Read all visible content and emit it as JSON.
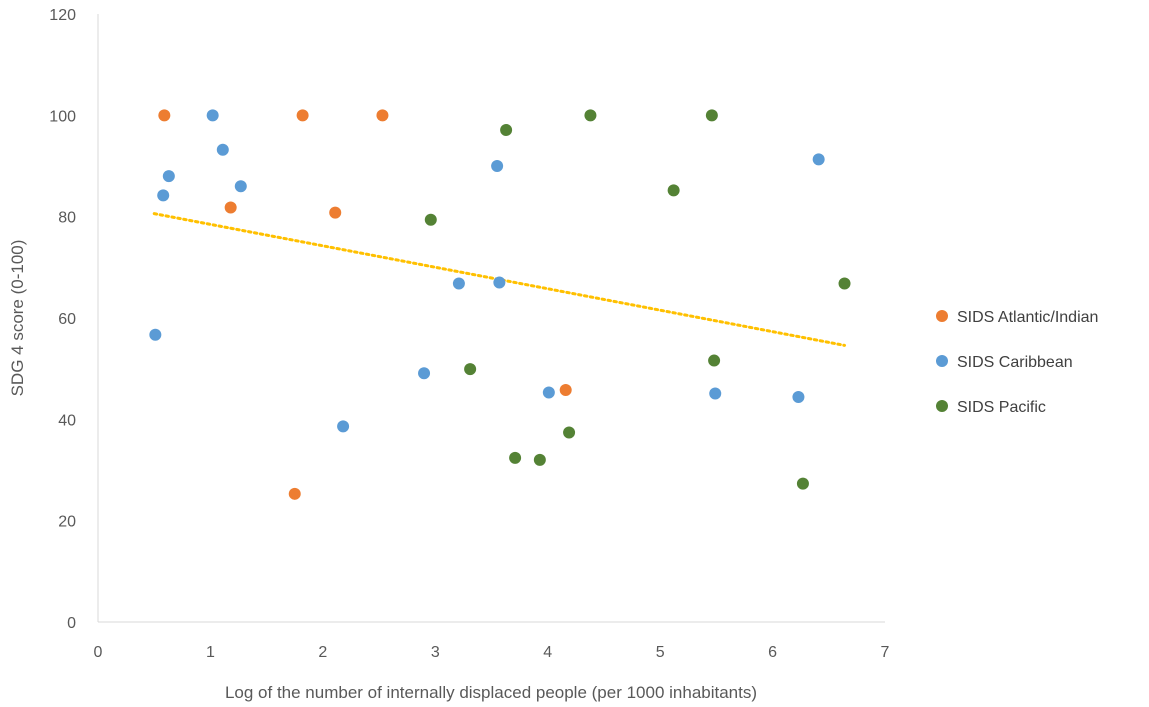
{
  "chart_data": {
    "type": "scatter",
    "title": "",
    "xlabel": "Log of the number of internally displaced people (per 1000 inhabitants)",
    "ylabel": "SDG 4 score (0-100)",
    "xlim": [
      0,
      7
    ],
    "ylim": [
      0,
      120
    ],
    "x_ticks": [
      "0",
      "1",
      "2",
      "3",
      "4",
      "5",
      "6",
      "7"
    ],
    "y_ticks": [
      "0",
      "20",
      "40",
      "60",
      "80",
      "100",
      "120"
    ],
    "grid": false,
    "legend_position": "right",
    "series": [
      {
        "name": "SIDS Atlantic/Indian",
        "color": "#ED7D31",
        "points": [
          {
            "x": 0.59,
            "y": 100.0
          },
          {
            "x": 1.82,
            "y": 100.0
          },
          {
            "x": 2.53,
            "y": 100.0
          },
          {
            "x": 1.18,
            "y": 81.8
          },
          {
            "x": 2.11,
            "y": 80.8
          },
          {
            "x": 4.16,
            "y": 45.8
          },
          {
            "x": 1.75,
            "y": 25.3
          }
        ]
      },
      {
        "name": "SIDS Caribbean",
        "color": "#5B9BD5",
        "points": [
          {
            "x": 1.02,
            "y": 100.0
          },
          {
            "x": 1.11,
            "y": 93.2
          },
          {
            "x": 0.63,
            "y": 88.0
          },
          {
            "x": 1.27,
            "y": 86.0
          },
          {
            "x": 0.58,
            "y": 84.2
          },
          {
            "x": 3.55,
            "y": 90.0
          },
          {
            "x": 6.41,
            "y": 91.3
          },
          {
            "x": 3.21,
            "y": 66.8
          },
          {
            "x": 3.57,
            "y": 67.0
          },
          {
            "x": 0.51,
            "y": 56.7
          },
          {
            "x": 2.9,
            "y": 49.1
          },
          {
            "x": 4.01,
            "y": 45.3
          },
          {
            "x": 5.49,
            "y": 45.1
          },
          {
            "x": 6.23,
            "y": 44.4
          },
          {
            "x": 2.18,
            "y": 38.6
          }
        ]
      },
      {
        "name": "SIDS Pacific",
        "color": "#548235",
        "points": [
          {
            "x": 4.38,
            "y": 100.0
          },
          {
            "x": 5.46,
            "y": 100.0
          },
          {
            "x": 3.63,
            "y": 97.1
          },
          {
            "x": 5.12,
            "y": 85.2
          },
          {
            "x": 2.96,
            "y": 79.4
          },
          {
            "x": 6.64,
            "y": 66.8
          },
          {
            "x": 5.48,
            "y": 51.6
          },
          {
            "x": 3.31,
            "y": 49.9
          },
          {
            "x": 4.19,
            "y": 37.4
          },
          {
            "x": 3.71,
            "y": 32.4
          },
          {
            "x": 3.93,
            "y": 32.0
          },
          {
            "x": 6.27,
            "y": 27.3
          }
        ]
      }
    ],
    "trendline": {
      "type": "linear",
      "style": "dotted",
      "color": "#FFC000",
      "from": {
        "x": 0.5,
        "y": 80.6
      },
      "to": {
        "x": 6.64,
        "y": 54.6
      }
    }
  }
}
